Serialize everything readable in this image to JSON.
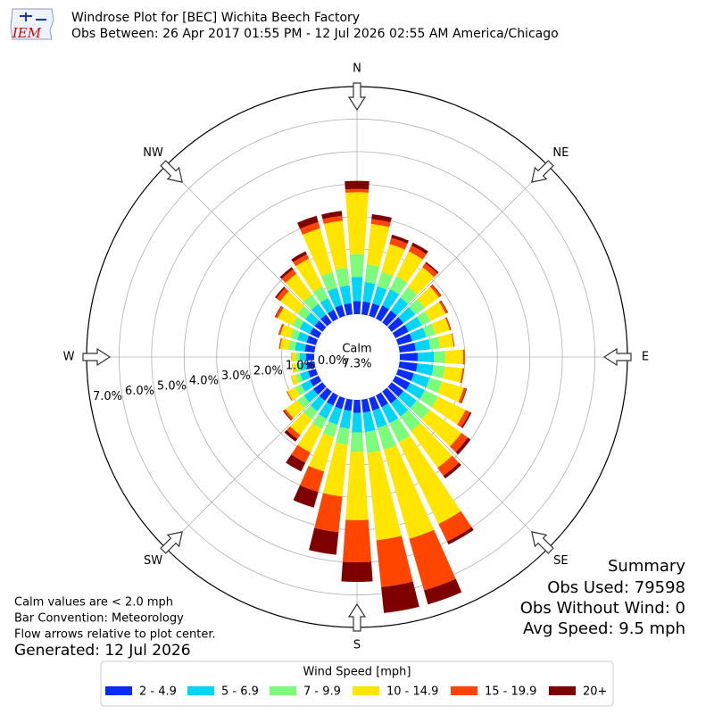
{
  "logo_text": "IEM",
  "chart_data": {
    "type": "windrose",
    "title": "Windrose Plot for [BEC] Wichita Beech Factory",
    "subtitle": "Obs Between: 26 Apr 2017 01:55 PM - 12 Jul 2026 02:55 AM America/Chicago",
    "x": [
      0,
      10,
      20,
      30,
      40,
      50,
      60,
      70,
      80,
      90,
      100,
      110,
      120,
      130,
      140,
      150,
      160,
      170,
      180,
      190,
      200,
      210,
      220,
      230,
      240,
      250,
      260,
      270,
      280,
      290,
      300,
      310,
      320,
      330,
      340,
      350
    ],
    "xlim": [
      0,
      360
    ],
    "xticks": [
      {
        "value": 0,
        "label": "N"
      },
      {
        "value": 45,
        "label": "NE"
      },
      {
        "value": 90,
        "label": "E"
      },
      {
        "value": 135,
        "label": "SE"
      },
      {
        "value": 180,
        "label": "S"
      },
      {
        "value": 225,
        "label": "SW"
      },
      {
        "value": 270,
        "label": "W"
      },
      {
        "value": 315,
        "label": "NW"
      }
    ],
    "ylim": [
      0,
      7
    ],
    "yticks": [
      {
        "value": 0,
        "label": "0.0%"
      },
      {
        "value": 1,
        "label": "1.0%"
      },
      {
        "value": 2,
        "label": "2.0%"
      },
      {
        "value": 3,
        "label": "3.0%"
      },
      {
        "value": 4,
        "label": "4.0%"
      },
      {
        "value": 5,
        "label": "5.0%"
      },
      {
        "value": 6,
        "label": "6.0%"
      },
      {
        "value": 7,
        "label": "7.0%"
      }
    ],
    "grid": true,
    "calm_label": "Calm",
    "calm_value": 7.3,
    "calm_value_label": "7.3%",
    "legend_title": "Wind Speed [mph]",
    "series": [
      {
        "name": "2 - 4.9",
        "color": "#0a2cf5",
        "values": [
          0.4,
          0.4,
          0.4,
          0.45,
          0.45,
          0.45,
          0.45,
          0.45,
          0.5,
          0.55,
          0.55,
          0.5,
          0.5,
          0.45,
          0.45,
          0.4,
          0.4,
          0.4,
          0.4,
          0.35,
          0.35,
          0.35,
          0.35,
          0.35,
          0.3,
          0.25,
          0.25,
          0.25,
          0.3,
          0.3,
          0.3,
          0.3,
          0.3,
          0.3,
          0.35,
          0.35
        ]
      },
      {
        "name": "5 - 6.9",
        "color": "#00d5f8",
        "values": [
          0.75,
          0.6,
          0.55,
          0.55,
          0.5,
          0.45,
          0.45,
          0.45,
          0.45,
          0.5,
          0.5,
          0.5,
          0.5,
          0.5,
          0.5,
          0.55,
          0.55,
          0.6,
          0.6,
          0.55,
          0.5,
          0.45,
          0.4,
          0.35,
          0.3,
          0.25,
          0.2,
          0.2,
          0.3,
          0.3,
          0.35,
          0.35,
          0.4,
          0.4,
          0.55,
          0.55
        ]
      },
      {
        "name": "7 - 9.9",
        "color": "#7cfc7a",
        "values": [
          0.7,
          0.55,
          0.45,
          0.45,
          0.4,
          0.35,
          0.3,
          0.3,
          0.3,
          0.35,
          0.35,
          0.4,
          0.45,
          0.5,
          0.55,
          0.65,
          0.7,
          0.65,
          0.6,
          0.5,
          0.4,
          0.35,
          0.3,
          0.25,
          0.2,
          0.15,
          0.12,
          0.12,
          0.2,
          0.22,
          0.25,
          0.3,
          0.35,
          0.4,
          0.5,
          0.55
        ]
      },
      {
        "name": "10 - 14.9",
        "color": "#ffe500",
        "values": [
          1.9,
          1.25,
          0.9,
          0.85,
          0.75,
          0.55,
          0.52,
          0.45,
          0.42,
          0.55,
          0.55,
          0.7,
          0.95,
          1.2,
          1.4,
          2.8,
          2.85,
          2.7,
          2.1,
          1.6,
          1.1,
          0.8,
          0.6,
          0.45,
          0.27,
          0.14,
          0.12,
          0.12,
          0.26,
          0.32,
          0.5,
          0.65,
          0.8,
          0.95,
          1.4,
          1.45
        ]
      },
      {
        "name": "15 - 19.9",
        "color": "#ff4500",
        "values": [
          0.1,
          0.15,
          0.2,
          0.2,
          0.15,
          0.08,
          0.06,
          0.04,
          0.03,
          0.05,
          0.05,
          0.08,
          0.15,
          0.25,
          0.3,
          0.6,
          1.65,
          1.45,
          1.3,
          1.1,
          0.65,
          0.35,
          0.15,
          0.07,
          0.03,
          0.01,
          0.01,
          0.01,
          0.04,
          0.05,
          0.08,
          0.15,
          0.17,
          0.15,
          0.2,
          0.15
        ]
      },
      {
        "name": "20+",
        "color": "#7f0000",
        "values": [
          0.25,
          0.15,
          0.1,
          0.1,
          0.05,
          0.02,
          0.02,
          0.01,
          0,
          0,
          0,
          0.02,
          0.05,
          0.1,
          0.1,
          0.1,
          0.45,
          0.8,
          0.6,
          0.7,
          0.5,
          0.3,
          0.1,
          0.03,
          0,
          0,
          0,
          0,
          0,
          0.01,
          0.02,
          0.05,
          0.08,
          0.1,
          0.2,
          0.15
        ]
      }
    ],
    "notes": [
      "Calm values are < 2.0 mph",
      "Bar Convention: Meteorology",
      "Flow arrows relative to plot center."
    ],
    "generated": "Generated: 12 Jul 2026",
    "summary": [
      "Summary",
      "Obs Used: 79598",
      "Obs Without Wind: 0",
      "Avg Speed: 9.5 mph"
    ]
  }
}
